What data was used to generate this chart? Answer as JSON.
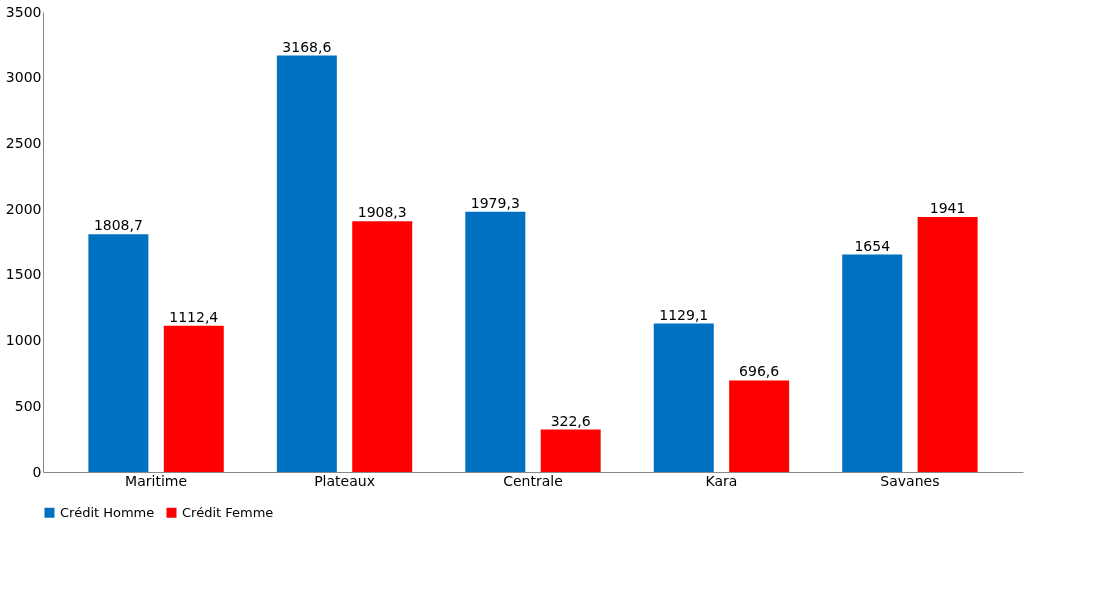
{
  "chart_data": {
    "type": "bar",
    "categories": [
      "Maritime",
      "Plateaux",
      "Centrale",
      "Kara",
      "Savanes"
    ],
    "series": [
      {
        "name": "Crédit Homme",
        "color": "#0070c0",
        "values": [
          1808.7,
          3168.6,
          1979.3,
          1129.1,
          1654
        ],
        "value_labels": [
          "1808,7",
          "3168,6",
          "1979,3",
          "1129,1",
          "1654"
        ]
      },
      {
        "name": "Crédit Femme",
        "color": "#ff0000",
        "values": [
          1112.4,
          1908.3,
          322.6,
          696.6,
          1941
        ],
        "value_labels": [
          "1112,4",
          "1908,3",
          "322,6",
          "696,6",
          "1941"
        ]
      }
    ],
    "ylim": [
      0,
      3500
    ],
    "yticks": [
      0,
      500,
      1000,
      1500,
      2000,
      2500,
      3000,
      3500
    ],
    "grid": false,
    "legend": "bottom"
  }
}
